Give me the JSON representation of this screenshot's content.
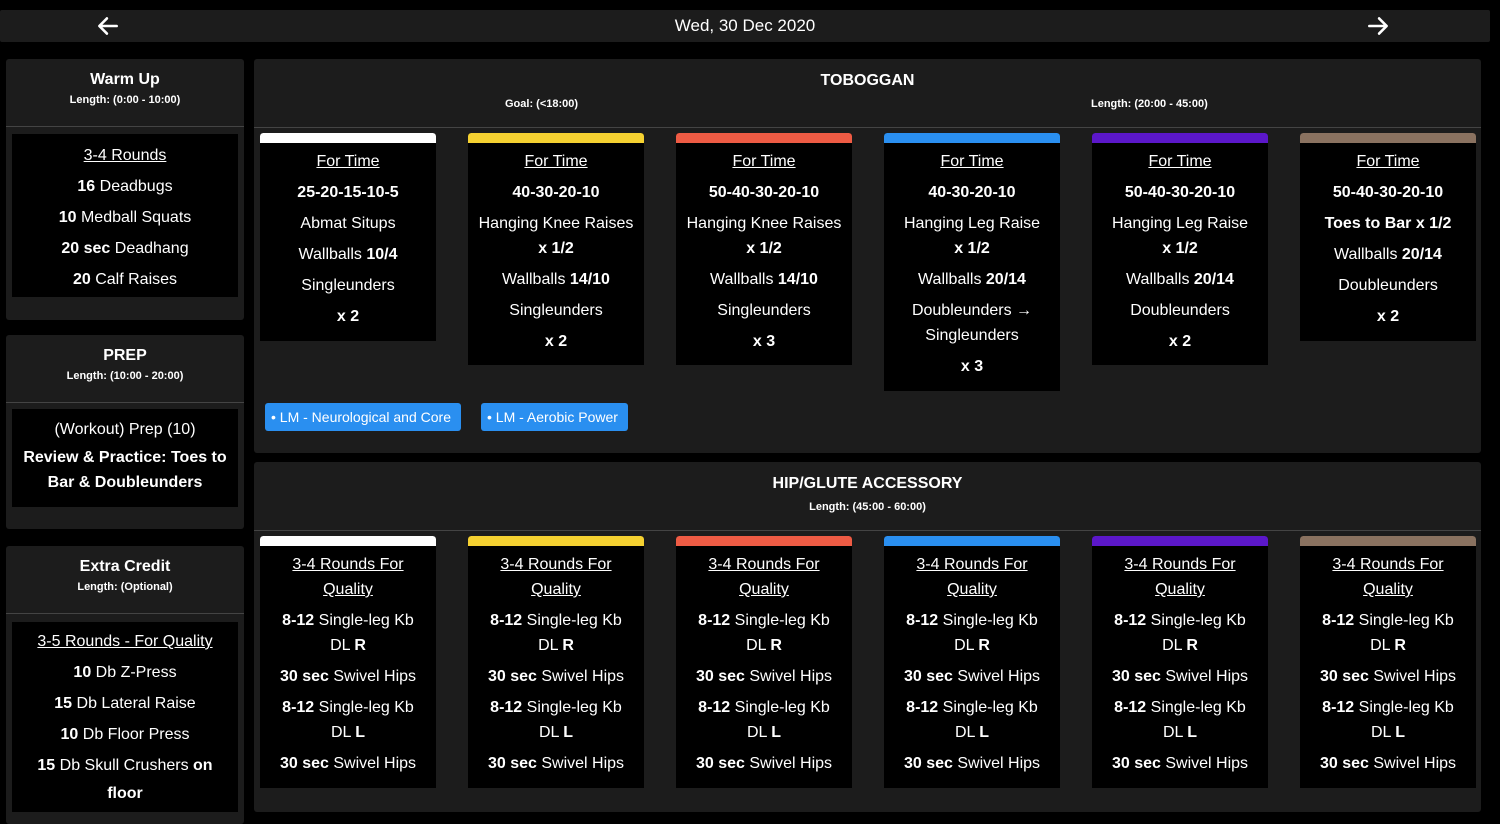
{
  "header": {
    "date": "Wed, 30 Dec 2020"
  },
  "warmup": {
    "title": "Warm Up",
    "length": "Length: (0:00 - 10:00)",
    "heading": "3-4 Rounds",
    "items": [
      {
        "num": "16",
        "text": " Deadbugs"
      },
      {
        "num": "10",
        "text": " Medball Squats"
      },
      {
        "num": "20 sec",
        "text": " Deadhang"
      },
      {
        "num": "20",
        "text": " Calf Raises"
      }
    ]
  },
  "prep": {
    "title": "PREP",
    "length": "Length: (10:00 - 20:00)",
    "line1": "(Workout) Prep (10)",
    "line2": "Review & Practice: Toes to",
    "line3": "Bar & Doubleunders"
  },
  "extra": {
    "title": "Extra Credit",
    "length": "Length: (Optional)",
    "heading": "3-5 Rounds -  For Quality",
    "items": [
      {
        "num": "10",
        "text": " Db Z-Press"
      },
      {
        "num": "15",
        "text": " Db Lateral Raise"
      },
      {
        "num": "10",
        "text": " Db Floor Press"
      },
      {
        "num": "15",
        "text": " Db Skull Crushers ",
        "suffix": "on"
      }
    ],
    "last": "floor"
  },
  "toboggan": {
    "title": "TOBOGGAN",
    "goal": "Goal: (<18:00)",
    "length": "Length: (20:00 - 45:00)",
    "tags": [
      "• LM - Neurological and Core",
      "• LM - Aerobic Power"
    ]
  },
  "hip": {
    "title": "HIP/GLUTE ACCESSORY",
    "length": "Length: (45:00 - 60:00)"
  },
  "colors": [
    "#ffffff",
    "#f5d131",
    "#ee5b44",
    "#2a8ff0",
    "#5b17c9",
    "#8a7260"
  ],
  "toboggan_cards": [
    {
      "lines": [
        "For Time",
        "25-20-15-10-5",
        "Abmat Situps",
        "Wallballs |10/4",
        "Singleunders",
        "x 2"
      ]
    },
    {
      "lines": [
        "For Time",
        "40-30-20-10",
        "Hanging Knee Raises",
        "x 1/2",
        "Wallballs |14/10",
        "Singleunders",
        "x 2"
      ]
    },
    {
      "lines": [
        "For Time",
        "50-40-30-20-10",
        "Hanging Knee Raises",
        "x 1/2",
        "Wallballs |14/10",
        "Singleunders",
        "x 3"
      ]
    },
    {
      "lines": [
        "For Time",
        "40-30-20-10",
        "Hanging Leg Raise",
        "x  1/2",
        "Wallballs |20/14",
        "Doubleunders  →",
        "Singleunders",
        "x 3"
      ]
    },
    {
      "lines": [
        "For Time",
        "50-40-30-20-10",
        "Hanging Leg Raise",
        "x  1/2",
        "Wallballs |20/14",
        "Doubleunders",
        "x 2"
      ]
    },
    {
      "lines": [
        "For Time",
        "50-40-30-20-10",
        "Toes to Bar    x  1/2",
        "Wallballs |20/14",
        "Doubleunders",
        "x 2"
      ]
    }
  ],
  "hip_cards": [
    {
      "side1": "R",
      "side2": "L"
    },
    {
      "side1": "R",
      "side2": "L"
    },
    {
      "side1": "R",
      "side2": "L"
    },
    {
      "side1": "R",
      "side2": "L"
    },
    {
      "side1": "R",
      "side2": "L"
    },
    {
      "side1": "R",
      "side2": "L"
    }
  ],
  "hip_text": {
    "heading1": "3-4 Rounds For",
    "heading2": "Quality",
    "kb_num": "8-12",
    "kb_text": " Single-leg Kb",
    "dl": "DL",
    "sw_num": "30 sec",
    "sw_text": " Swivel Hips"
  }
}
